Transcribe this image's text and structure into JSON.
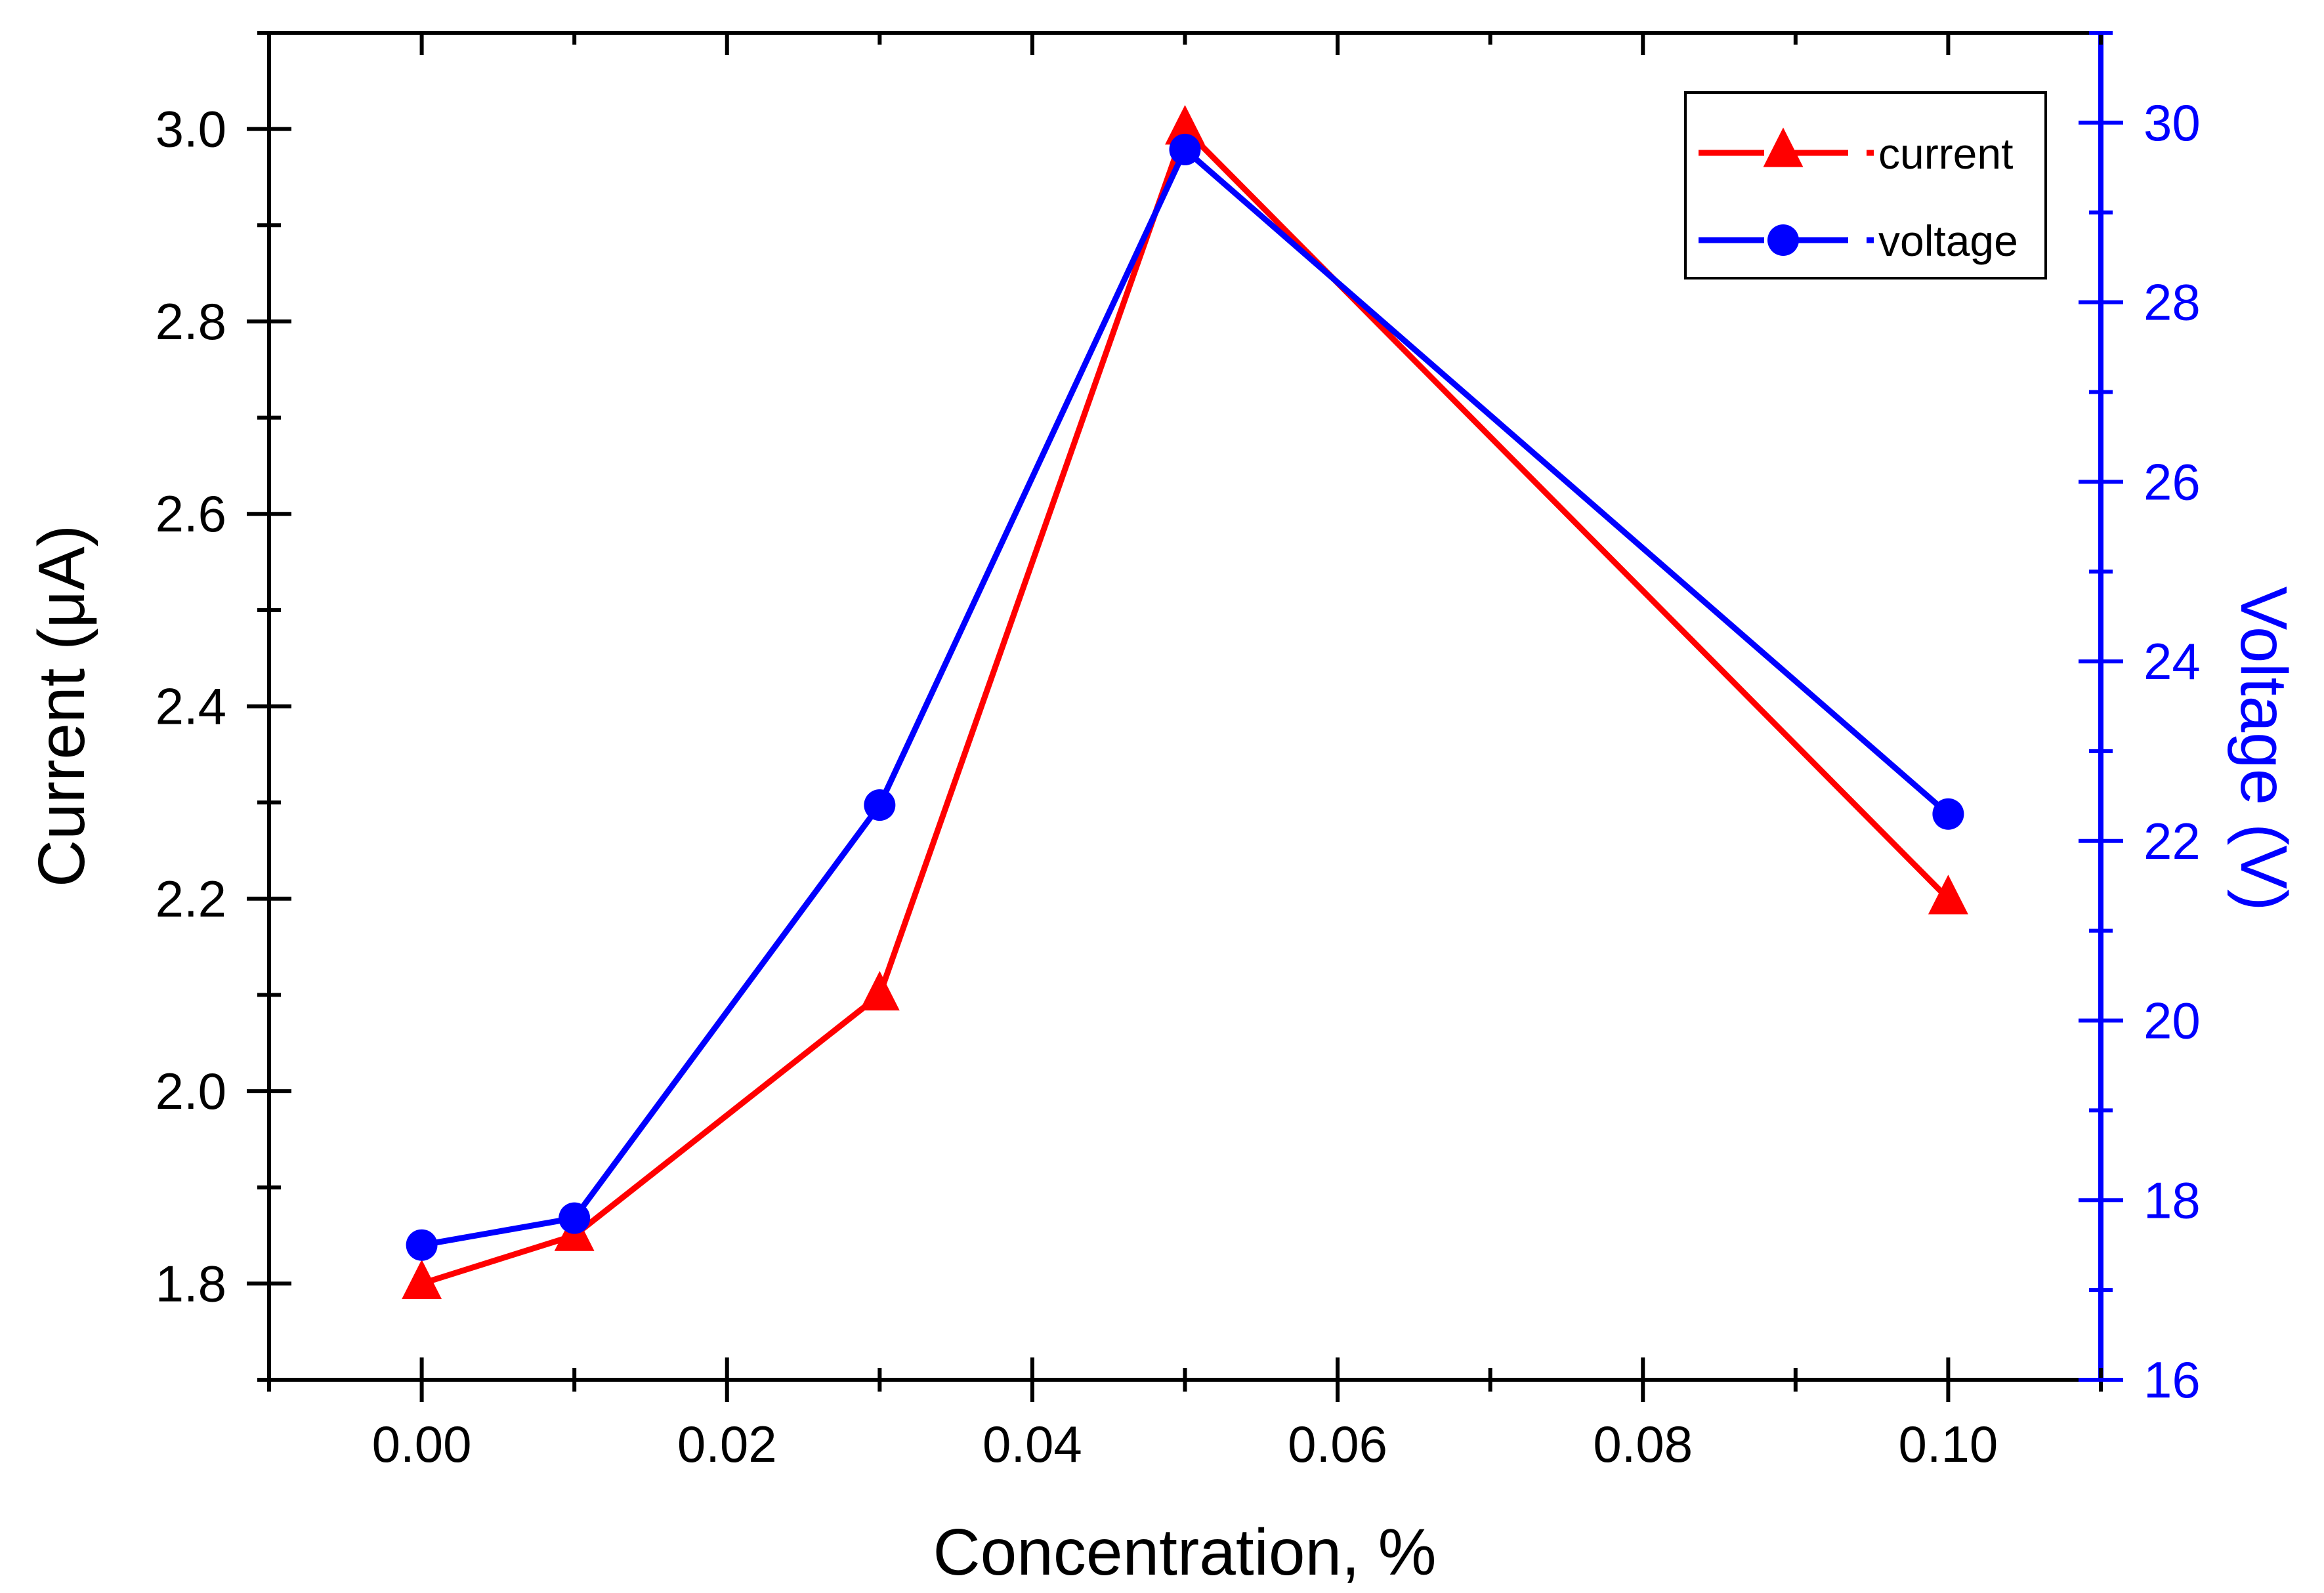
{
  "chart_data": {
    "type": "line",
    "title": "",
    "xlabel": "Concentration, %",
    "ylabel_left": "Current (μA)",
    "ylabel_right": "Voltage (V)",
    "xlim": [
      -0.01,
      0.11
    ],
    "ylim_left": [
      1.7,
      3.1
    ],
    "ylim_right": [
      16,
      31
    ],
    "x_ticks": [
      "0.00",
      "0.02",
      "0.04",
      "0.06",
      "0.08",
      "0.10"
    ],
    "y_left_ticks": [
      "1.8",
      "2.0",
      "2.2",
      "2.4",
      "2.6",
      "2.8",
      "3.0"
    ],
    "y_right_ticks": [
      "16",
      "18",
      "20",
      "22",
      "24",
      "26",
      "28",
      "30"
    ],
    "grid": false,
    "legend_position": "top-right",
    "x": [
      0.0,
      0.01,
      0.03,
      0.05,
      0.1
    ],
    "series": [
      {
        "name": "current",
        "axis": "left",
        "marker": "triangle",
        "color": "#ff0000",
        "values": [
          1.8,
          1.85,
          2.1,
          3.0,
          2.2
        ]
      },
      {
        "name": "voltage",
        "axis": "right",
        "marker": "circle",
        "color": "#0000ff",
        "values": [
          17.5,
          17.8,
          22.4,
          29.7,
          22.3
        ]
      }
    ]
  },
  "colors": {
    "left_axis": "#000000",
    "right_axis": "#0000ff"
  }
}
